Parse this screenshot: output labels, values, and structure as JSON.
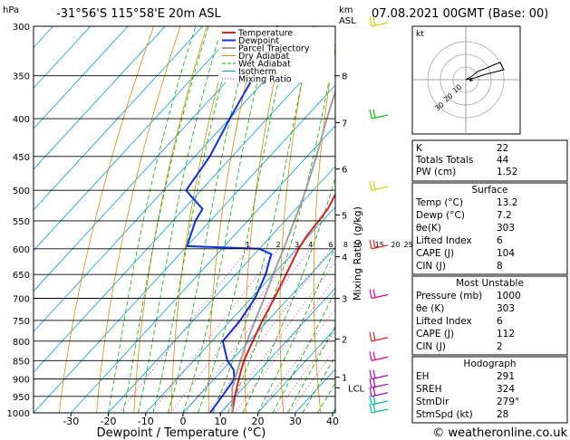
{
  "header": {
    "location": "-31°56'S  115°58'E  20m  ASL",
    "datetime": "07.08.2021  00GMT  (Base: 00)",
    "p_unit": "hPa",
    "km_unit": "km",
    "asl_unit": "ASL"
  },
  "footer": {
    "credit": "© weatheronline.co.uk"
  },
  "colors": {
    "temperature": "#e02020",
    "dewpoint": "#1030e0",
    "parcel": "#a0a0a0",
    "dry_adiabat": "#e08a00",
    "wet_adiabat": "#00b000",
    "isotherm": "#00a0e0",
    "mixing_ratio": "#e000a0"
  },
  "chart_data": {
    "type": "line",
    "xlabel": "Dewpoint  /  Temperature  (°C)",
    "ylabel_right": "Mixing Ratio  (g/kg)",
    "x_ticks": [
      -30,
      -20,
      -10,
      0,
      10,
      20,
      30,
      40
    ],
    "xlim": [
      -40,
      40
    ],
    "pressure_levels": [
      300,
      350,
      400,
      450,
      500,
      550,
      600,
      650,
      700,
      750,
      800,
      850,
      900,
      950,
      1000
    ],
    "ylim": [
      1000,
      300
    ],
    "y_scale": "log",
    "km_ticks": [
      {
        "km": "8",
        "p": 350
      },
      {
        "km": "7",
        "p": 405
      },
      {
        "km": "6",
        "p": 468
      },
      {
        "km": "5",
        "p": 540
      },
      {
        "km": "4",
        "p": 615
      },
      {
        "km": "3",
        "p": 700
      },
      {
        "km": "2",
        "p": 795
      },
      {
        "km": "1",
        "p": 895
      }
    ],
    "lcl_label": "LCL",
    "lcl_p": 925,
    "mixing_ratio_labels": [
      "1",
      "2",
      "3",
      "4",
      "6",
      "8",
      "10",
      "15",
      "20",
      "25"
    ],
    "legend": [
      "Temperature",
      "Dewpoint",
      "Parcel Trajectory",
      "Dry Adiabat",
      "Wet Adiabat",
      "Isotherm",
      "Mixing Ratio"
    ],
    "series": [
      {
        "name": "Temperature",
        "points": [
          [
            1000,
            13.2
          ],
          [
            975,
            11.5
          ],
          [
            950,
            9.8
          ],
          [
            925,
            8.2
          ],
          [
            900,
            6.6
          ],
          [
            875,
            5.0
          ],
          [
            850,
            3.4
          ],
          [
            800,
            1.0
          ],
          [
            750,
            -1.5
          ],
          [
            700,
            -3.8
          ],
          [
            650,
            -6.5
          ],
          [
            600,
            -9.5
          ],
          [
            575,
            -10.5
          ],
          [
            550,
            -11.0
          ],
          [
            530,
            -11.5
          ],
          [
            500,
            -13.5
          ],
          [
            450,
            -18.5
          ],
          [
            400,
            -24.0
          ],
          [
            350,
            -30.0
          ],
          [
            330,
            -28.0
          ],
          [
            300,
            -33.0
          ]
        ]
      },
      {
        "name": "Dewpoint",
        "points": [
          [
            1000,
            7.2
          ],
          [
            950,
            6.4
          ],
          [
            900,
            5.4
          ],
          [
            875,
            3.0
          ],
          [
            850,
            -1.0
          ],
          [
            800,
            -7.0
          ],
          [
            750,
            -7.5
          ],
          [
            700,
            -9.0
          ],
          [
            650,
            -12.0
          ],
          [
            610,
            -15.5
          ],
          [
            600,
            -20.0
          ],
          [
            595,
            -40.0
          ],
          [
            550,
            -44.0
          ],
          [
            530,
            -45.0
          ],
          [
            510,
            -51.0
          ],
          [
            500,
            -54.0
          ],
          [
            450,
            -56.0
          ],
          [
            400,
            -60.0
          ],
          [
            350,
            -64.0
          ],
          [
            300,
            -70.0
          ]
        ]
      },
      {
        "name": "Parcel Trajectory",
        "points": [
          [
            1000,
            13.2
          ],
          [
            925,
            7.0
          ],
          [
            850,
            2.5
          ],
          [
            800,
            -0.5
          ],
          [
            750,
            -3.5
          ],
          [
            700,
            -6.5
          ],
          [
            650,
            -10.0
          ],
          [
            600,
            -13.5
          ],
          [
            550,
            -17.5
          ],
          [
            500,
            -22.0
          ],
          [
            450,
            -27.5
          ],
          [
            400,
            -34.0
          ],
          [
            350,
            -41.0
          ],
          [
            300,
            -49.0
          ]
        ]
      }
    ],
    "wind_barbs_p": [
      1000,
      975,
      950,
      925,
      900,
      850,
      800,
      700,
      600,
      500,
      400,
      300
    ]
  },
  "hodograph": {
    "unit_label": "kt",
    "ring_labels": [
      "10",
      "20",
      "30"
    ]
  },
  "stats": {
    "top": [
      {
        "label": "K",
        "value": "22"
      },
      {
        "label": "Totals Totals",
        "value": "44"
      },
      {
        "label": "PW (cm)",
        "value": "1.52"
      }
    ],
    "surface": {
      "title": "Surface",
      "rows": [
        {
          "label": "Temp (°C)",
          "value": "13.2"
        },
        {
          "label": "Dewp (°C)",
          "value": "7.2"
        },
        {
          "label": "θe(K)",
          "value": "303"
        },
        {
          "label": "Lifted Index",
          "value": "6"
        },
        {
          "label": "CAPE (J)",
          "value": "104"
        },
        {
          "label": "CIN (J)",
          "value": "8"
        }
      ]
    },
    "unstable": {
      "title": "Most Unstable",
      "rows": [
        {
          "label": "Pressure (mb)",
          "value": "1000"
        },
        {
          "label": "θe (K)",
          "value": "303"
        },
        {
          "label": "Lifted Index",
          "value": "6"
        },
        {
          "label": "CAPE (J)",
          "value": "112"
        },
        {
          "label": "CIN (J)",
          "value": "2"
        }
      ]
    },
    "hodo": {
      "title": "Hodograph",
      "rows": [
        {
          "label": "EH",
          "value": "291"
        },
        {
          "label": "SREH",
          "value": "324"
        },
        {
          "label": "StmDir",
          "value": "279°"
        },
        {
          "label": "StmSpd (kt)",
          "value": "28"
        }
      ]
    }
  }
}
